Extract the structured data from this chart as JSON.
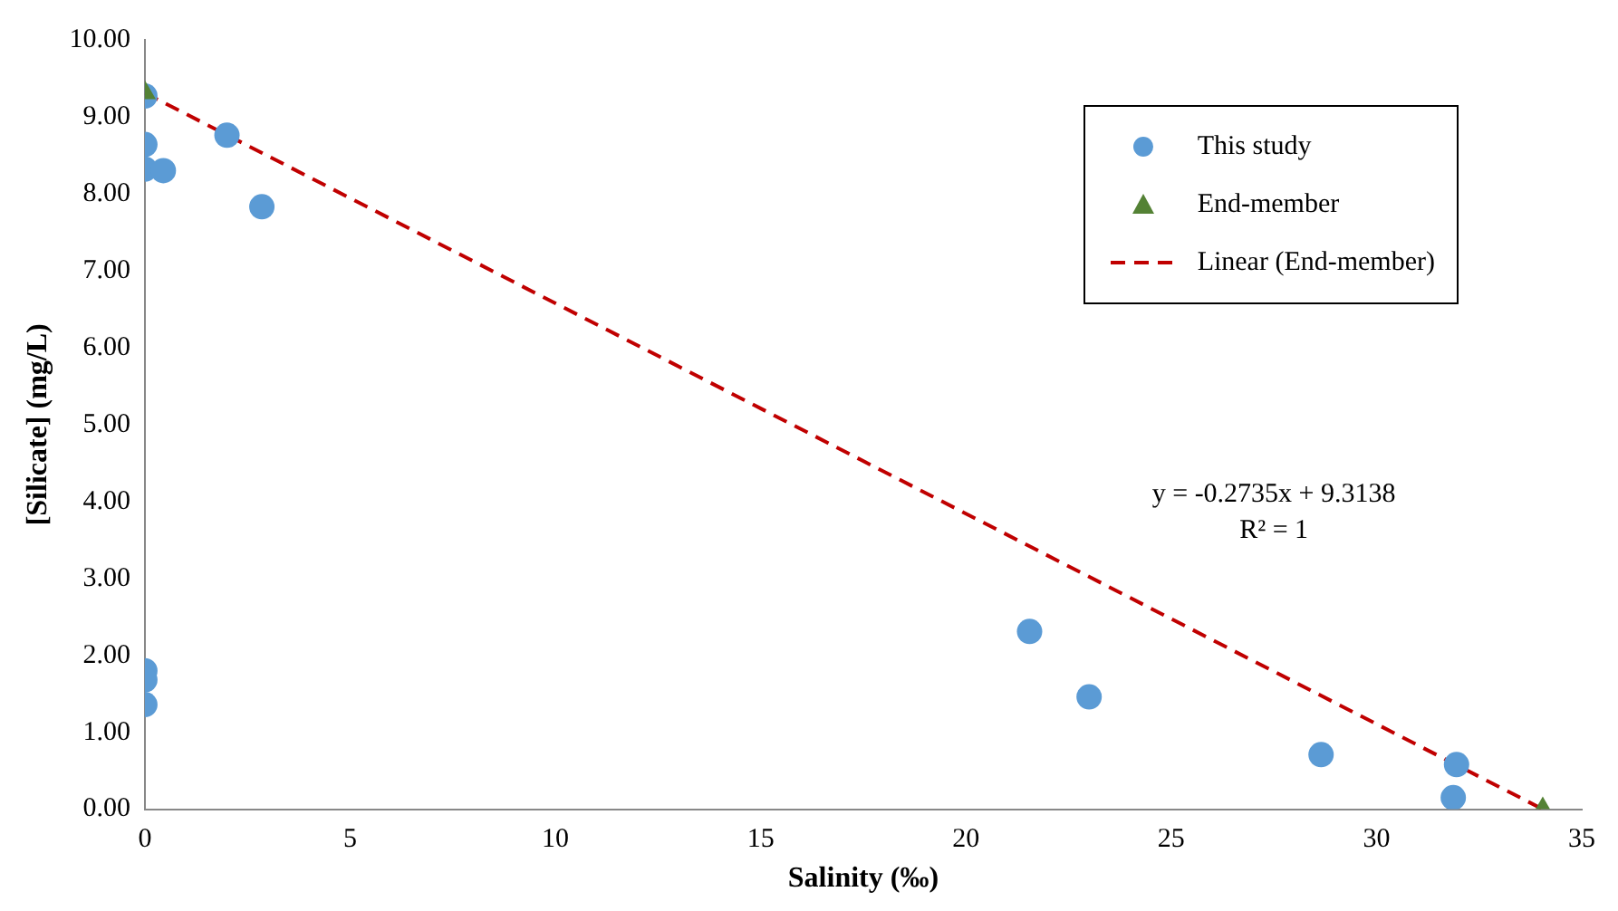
{
  "chart_data": {
    "type": "scatter",
    "xlabel": "Salinity (‰)",
    "ylabel": "[Silicate] (mg/L)",
    "xlim": [
      0,
      35
    ],
    "xticks": [
      0,
      5,
      10,
      15,
      20,
      25,
      30,
      35
    ],
    "ylim": [
      0,
      10
    ],
    "yticks": [
      {
        "value": 0,
        "label": "0.00"
      },
      {
        "value": 1,
        "label": "1.00"
      },
      {
        "value": 2,
        "label": "2.00"
      },
      {
        "value": 3,
        "label": "3.00"
      },
      {
        "value": 4,
        "label": "4.00"
      },
      {
        "value": 5,
        "label": "5.00"
      },
      {
        "value": 6,
        "label": "6.00"
      },
      {
        "value": 7,
        "label": "7.00"
      },
      {
        "value": 8,
        "label": "8.00"
      },
      {
        "value": 9,
        "label": "9.00"
      },
      {
        "value": 10,
        "label": "10.00"
      }
    ],
    "grid": false,
    "legend": "top right",
    "series": [
      {
        "name": "This study",
        "marker": "circle",
        "color": "#5b9bd5",
        "x": [
          0,
          0,
          0,
          0.45,
          2.0,
          2.85,
          0,
          0,
          0,
          21.55,
          23.0,
          28.65,
          31.95,
          31.87
        ],
        "values": [
          9.27,
          8.64,
          8.32,
          8.3,
          8.76,
          7.83,
          1.8,
          1.68,
          1.36,
          2.31,
          1.46,
          0.71,
          0.58,
          0.15
        ]
      },
      {
        "name": "End-member",
        "marker": "triangle",
        "color": "#548235",
        "x": [
          0,
          34.05
        ],
        "values": [
          9.31,
          0
        ]
      },
      {
        "name": "Linear (End-member)",
        "type": "line",
        "marker": "none",
        "line_style": "dashed",
        "color": "#c00000",
        "x": [
          0,
          34.05
        ],
        "values": [
          9.31,
          0
        ]
      }
    ],
    "annotations": [
      "y = -0.2735x + 9.3138",
      "R² = 1"
    ]
  }
}
